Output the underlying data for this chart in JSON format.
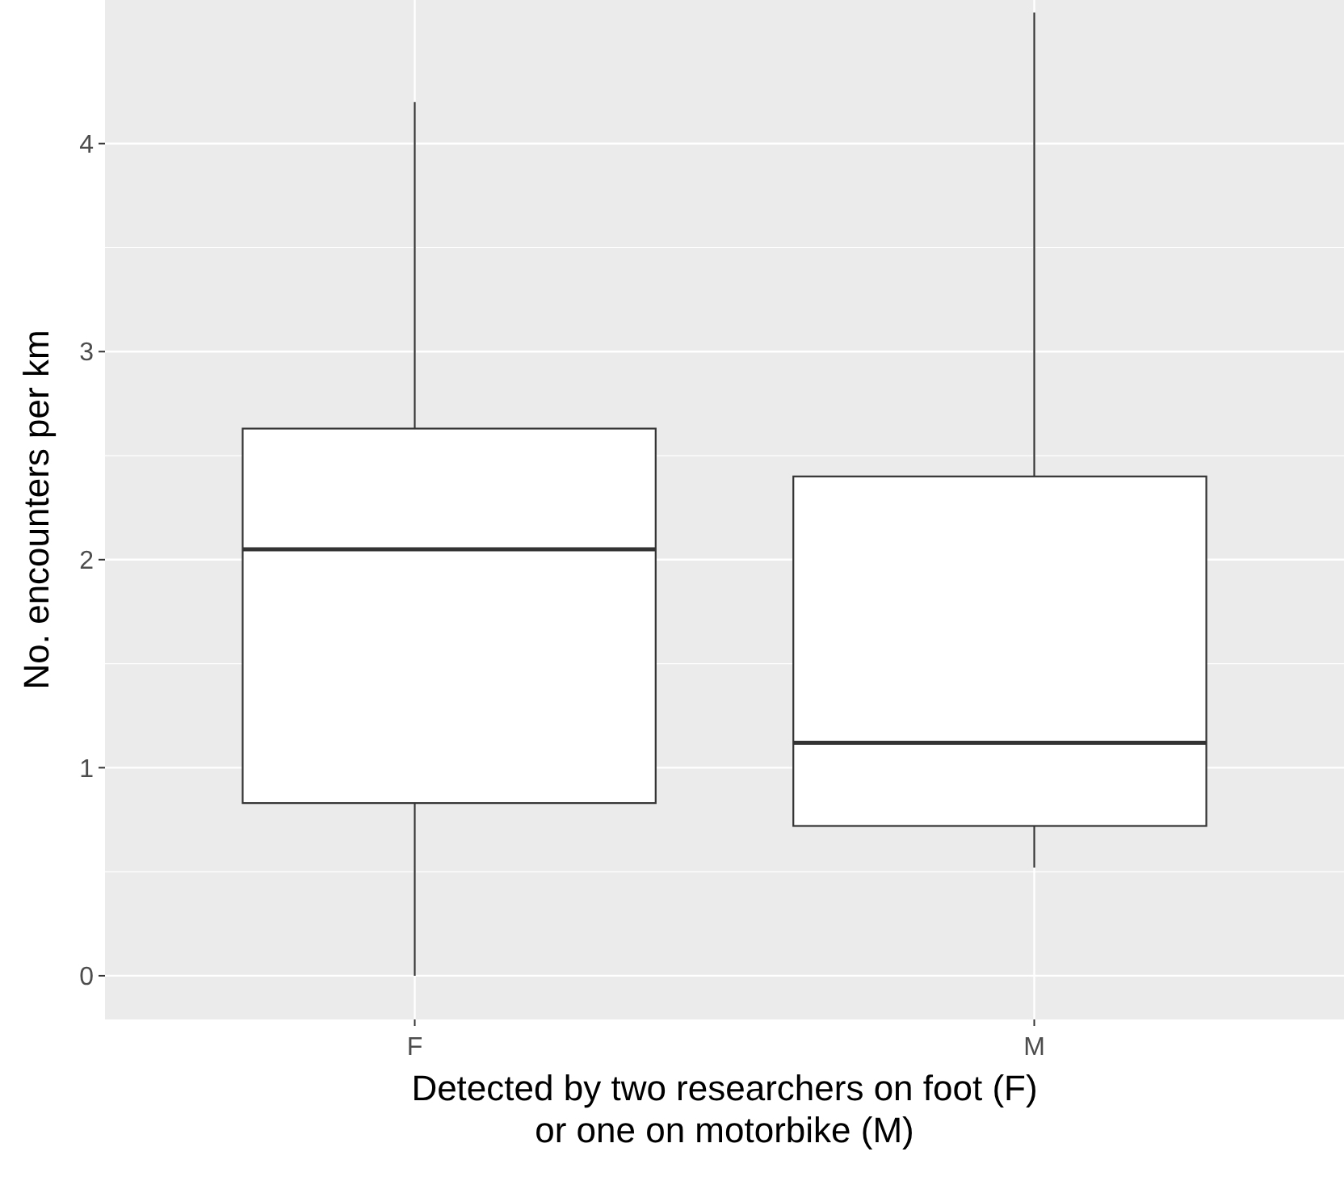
{
  "chart_data": {
    "type": "box",
    "xlabel": "Detected by two researchers on foot (F)\nor one on motorbike (M)",
    "ylabel": "No. encounters per km",
    "categories": [
      "F",
      "M"
    ],
    "boxes": [
      {
        "low": 0,
        "q1": 0.83,
        "median": 2.05,
        "q3": 2.63,
        "high": 4.2
      },
      {
        "low": 0.52,
        "q1": 0.72,
        "median": 1.12,
        "q3": 2.4,
        "high": 4.63
      }
    ],
    "ylim": [
      -0.21,
      4.69
    ],
    "yticks": [
      0,
      1,
      2,
      3,
      4
    ],
    "grid": true
  }
}
